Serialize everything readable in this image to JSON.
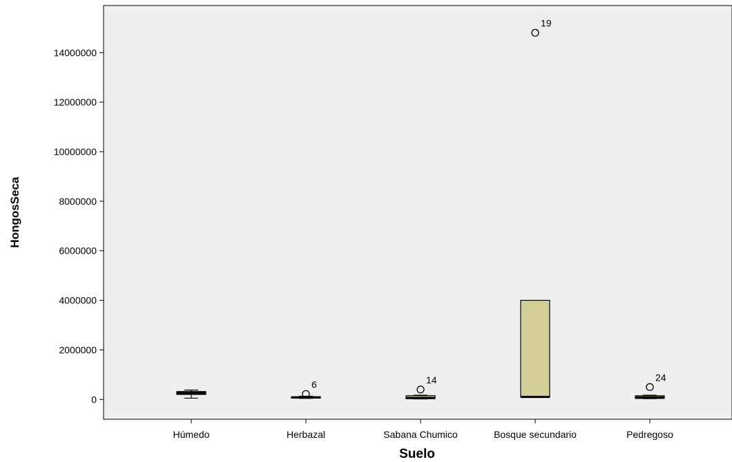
{
  "chart_data": {
    "type": "boxplot",
    "title": "",
    "xlabel": "Suelo",
    "ylabel": "HongosSeca",
    "ylim": [
      -800000,
      15900000
    ],
    "yticks": [
      0,
      2000000,
      4000000,
      6000000,
      8000000,
      10000000,
      12000000,
      14000000
    ],
    "ytick_labels": [
      "0",
      "2000000",
      "4000000",
      "6000000",
      "8000000",
      "10000000",
      "12000000",
      "14000000"
    ],
    "grid": false,
    "categories": [
      "Húmedo",
      "Herbazal",
      "Sabana Chumico",
      "Bosque secundario",
      "Pedregoso"
    ],
    "boxes": [
      {
        "category": "Húmedo",
        "whisker_low": 50000,
        "q1": 200000,
        "median": 260000,
        "q3": 320000,
        "whisker_high": 380000,
        "outliers": []
      },
      {
        "category": "Herbazal",
        "whisker_low": 40000,
        "q1": 60000,
        "median": 80000,
        "q3": 110000,
        "whisker_high": 130000,
        "outliers": [
          {
            "label": "6",
            "value": 220000
          }
        ]
      },
      {
        "category": "Sabana Chumico",
        "whisker_low": 20000,
        "q1": 30000,
        "median": 60000,
        "q3": 150000,
        "whisker_high": 170000,
        "outliers": [
          {
            "label": "14",
            "value": 400000
          }
        ]
      },
      {
        "category": "Bosque secundario",
        "whisker_low": 100000,
        "q1": 100000,
        "median": 100000,
        "q3": 4000000,
        "whisker_high": 4000000,
        "outliers": [
          {
            "label": "19",
            "value": 14800000
          }
        ]
      },
      {
        "category": "Pedregoso",
        "whisker_low": 30000,
        "q1": 40000,
        "median": 80000,
        "q3": 150000,
        "whisker_high": 170000,
        "outliers": [
          {
            "label": "24",
            "value": 500000
          }
        ]
      }
    ],
    "colors": {
      "plot_background": "#efefef",
      "box_fill": "#d3cf98",
      "box_stroke": "#000000",
      "outlier_stroke": "#000000"
    }
  }
}
